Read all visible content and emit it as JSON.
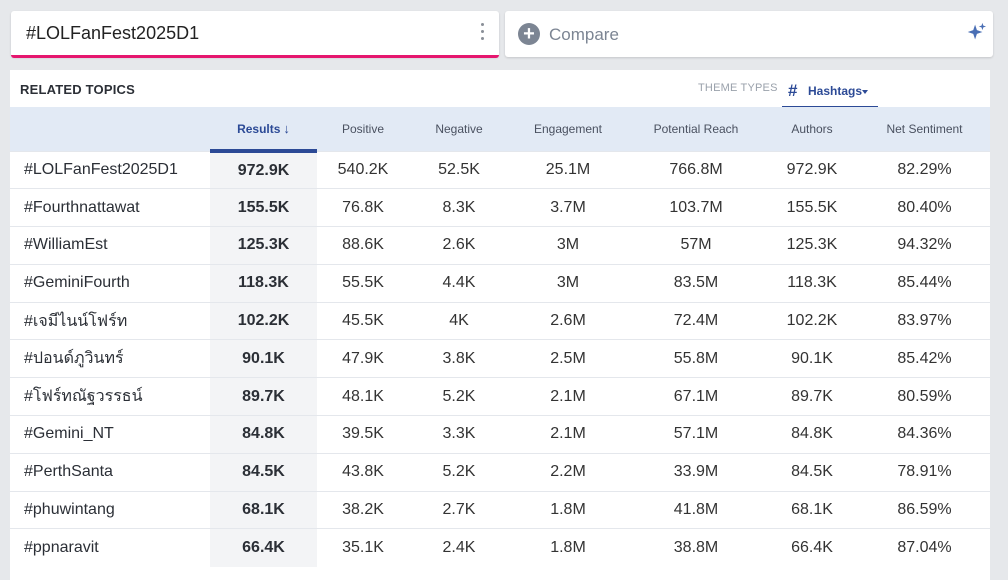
{
  "search": {
    "query": "#LOLFanFest2025D1"
  },
  "compare": {
    "label": "Compare"
  },
  "panel": {
    "title": "RELATED TOPICS",
    "theme_types_label": "THEME TYPES",
    "theme_selected": "Hashtags"
  },
  "table": {
    "columns": [
      "",
      "Results",
      "Positive",
      "Negative",
      "Engagement",
      "Potential Reach",
      "Authors",
      "Net Sentiment"
    ],
    "rows": [
      {
        "topic": "#LOLFanFest2025D1",
        "results": "972.9K",
        "positive": "540.2K",
        "negative": "52.5K",
        "engagement": "25.1M",
        "reach": "766.8M",
        "authors": "972.9K",
        "sentiment": "82.29%"
      },
      {
        "topic": "#Fourthnattawat",
        "results": "155.5K",
        "positive": "76.8K",
        "negative": "8.3K",
        "engagement": "3.7M",
        "reach": "103.7M",
        "authors": "155.5K",
        "sentiment": "80.40%"
      },
      {
        "topic": "#WilliamEst",
        "results": "125.3K",
        "positive": "88.6K",
        "negative": "2.6K",
        "engagement": "3M",
        "reach": "57M",
        "authors": "125.3K",
        "sentiment": "94.32%"
      },
      {
        "topic": "#GeminiFourth",
        "results": "118.3K",
        "positive": "55.5K",
        "negative": "4.4K",
        "engagement": "3M",
        "reach": "83.5M",
        "authors": "118.3K",
        "sentiment": "85.44%"
      },
      {
        "topic": "#เจมีไนน์โฟร์ท",
        "results": "102.2K",
        "positive": "45.5K",
        "negative": "4K",
        "engagement": "2.6M",
        "reach": "72.4M",
        "authors": "102.2K",
        "sentiment": "83.97%"
      },
      {
        "topic": "#ปอนด์ภูวินทร์",
        "results": "90.1K",
        "positive": "47.9K",
        "negative": "3.8K",
        "engagement": "2.5M",
        "reach": "55.8M",
        "authors": "90.1K",
        "sentiment": "85.42%"
      },
      {
        "topic": "#โฟร์ทณัฐวรรธน์",
        "results": "89.7K",
        "positive": "48.1K",
        "negative": "5.2K",
        "engagement": "2.1M",
        "reach": "67.1M",
        "authors": "89.7K",
        "sentiment": "80.59%"
      },
      {
        "topic": "#Gemini_NT",
        "results": "84.8K",
        "positive": "39.5K",
        "negative": "3.3K",
        "engagement": "2.1M",
        "reach": "57.1M",
        "authors": "84.8K",
        "sentiment": "84.36%"
      },
      {
        "topic": "#PerthSanta",
        "results": "84.5K",
        "positive": "43.8K",
        "negative": "5.2K",
        "engagement": "2.2M",
        "reach": "33.9M",
        "authors": "84.5K",
        "sentiment": "78.91%"
      },
      {
        "topic": "#phuwintang",
        "results": "68.1K",
        "positive": "38.2K",
        "negative": "2.7K",
        "engagement": "1.8M",
        "reach": "41.8M",
        "authors": "68.1K",
        "sentiment": "86.59%"
      },
      {
        "topic": "#ppnaravit",
        "results": "66.4K",
        "positive": "35.1K",
        "negative": "2.4K",
        "engagement": "1.8M",
        "reach": "38.8M",
        "authors": "66.4K",
        "sentiment": "87.04%"
      }
    ]
  },
  "icons": {
    "kebab": "more-vertical-icon",
    "compare": "plus-circle-icon",
    "sparkle": "sparkle-icon",
    "hash": "hashtag-icon",
    "sort": "arrow-down-icon"
  },
  "colors": {
    "accent_pink": "#e5166e",
    "accent_blue": "#2c4a96",
    "header_bg": "#e2eaf5"
  }
}
